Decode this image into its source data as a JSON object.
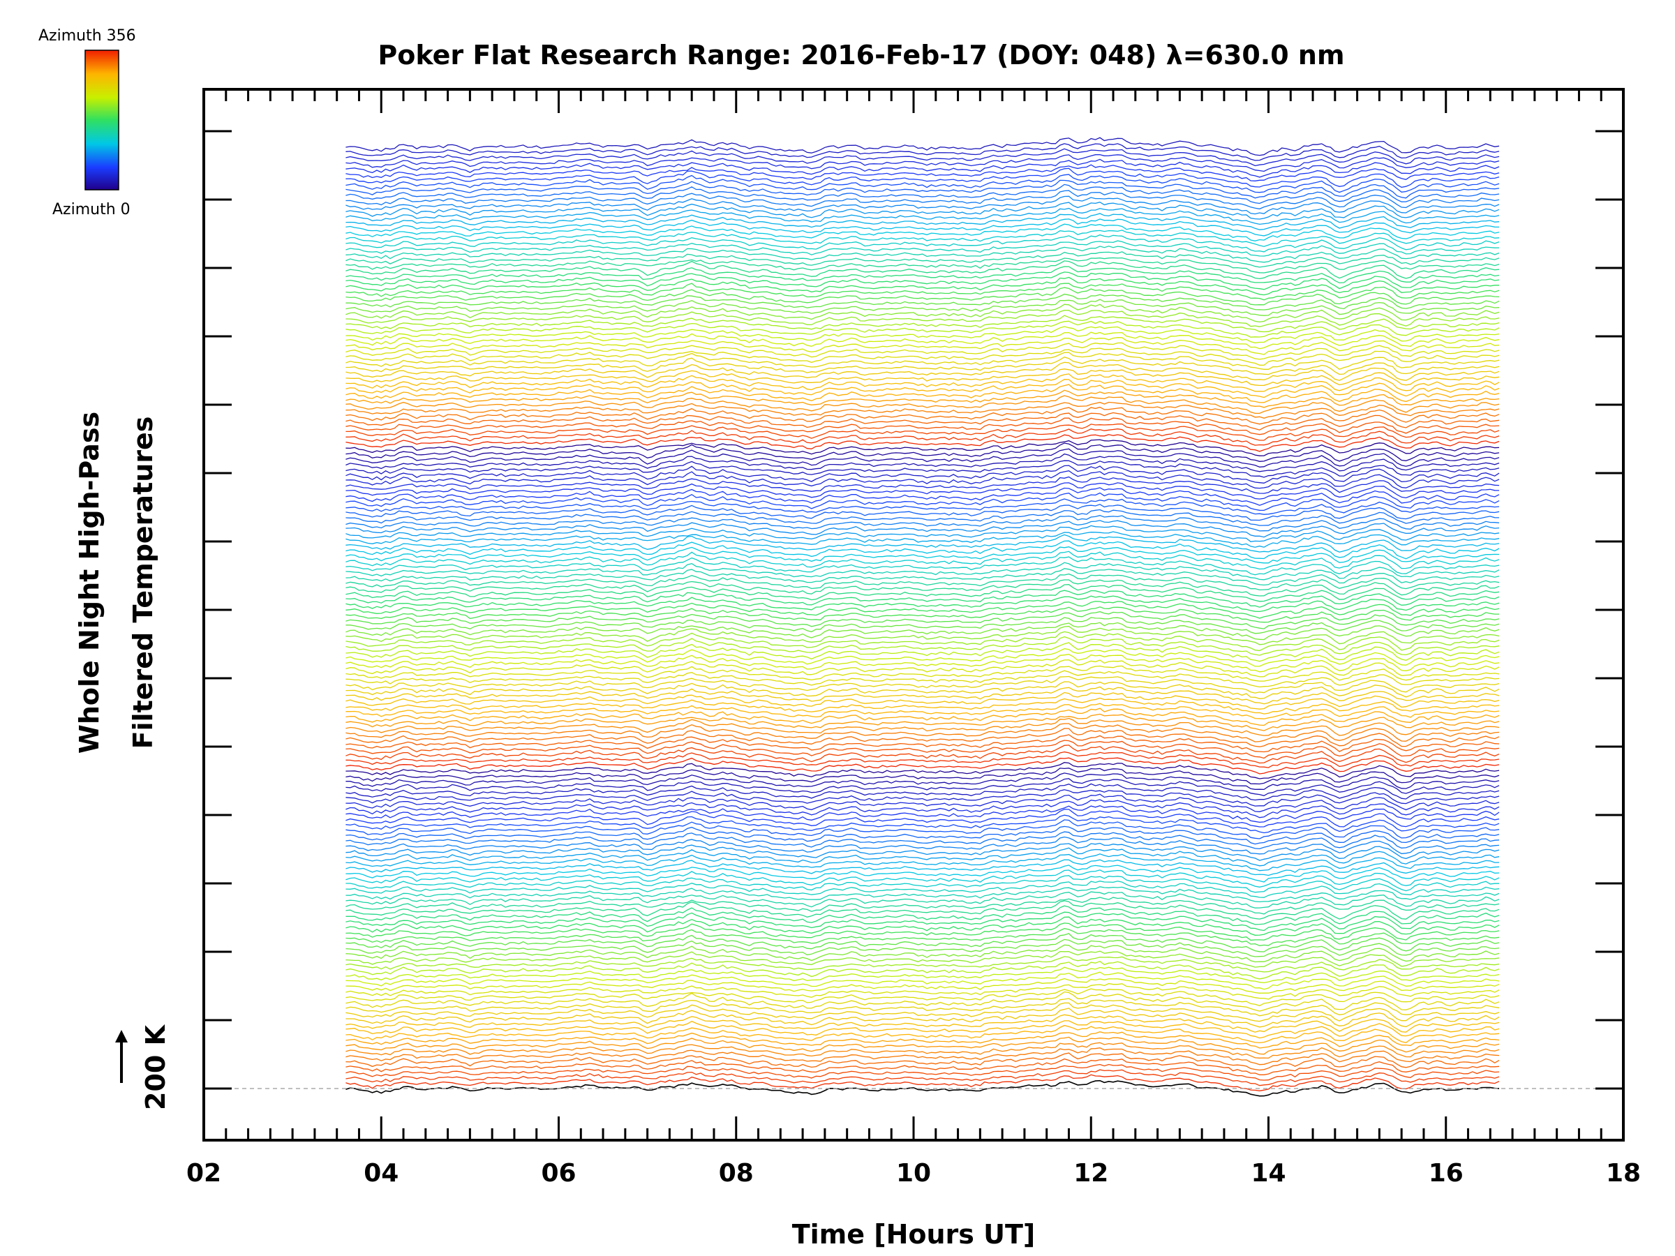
{
  "chart_data": {
    "type": "line",
    "title": "Poker Flat Research Range: 2016-Feb-17 (DOY: 048) λ=630.0 nm",
    "xlabel": "Time [Hours UT]",
    "ylabel_lines": [
      "Whole Night High-Pass",
      "Filtered Temperatures"
    ],
    "xlim": [
      2,
      18
    ],
    "x_ticks": [
      "02",
      "04",
      "06",
      "08",
      "10",
      "12",
      "14",
      "16",
      "18"
    ],
    "x_range_data": [
      3.6,
      16.6
    ],
    "y_scale_label": "200 K",
    "colorbar": {
      "top_label": "Azimuth 356",
      "bottom_label": "Azimuth 0",
      "colormap": "rainbow"
    },
    "series_count": 176,
    "baseline_series_color": "#000000",
    "features": [
      {
        "x": 7.0,
        "note": "dip"
      },
      {
        "x": 7.5,
        "note": "peak"
      },
      {
        "x": 11.7,
        "note": "peak"
      },
      {
        "x": 14.8,
        "note": "dip"
      },
      {
        "x": 15.5,
        "note": "dip"
      }
    ]
  }
}
